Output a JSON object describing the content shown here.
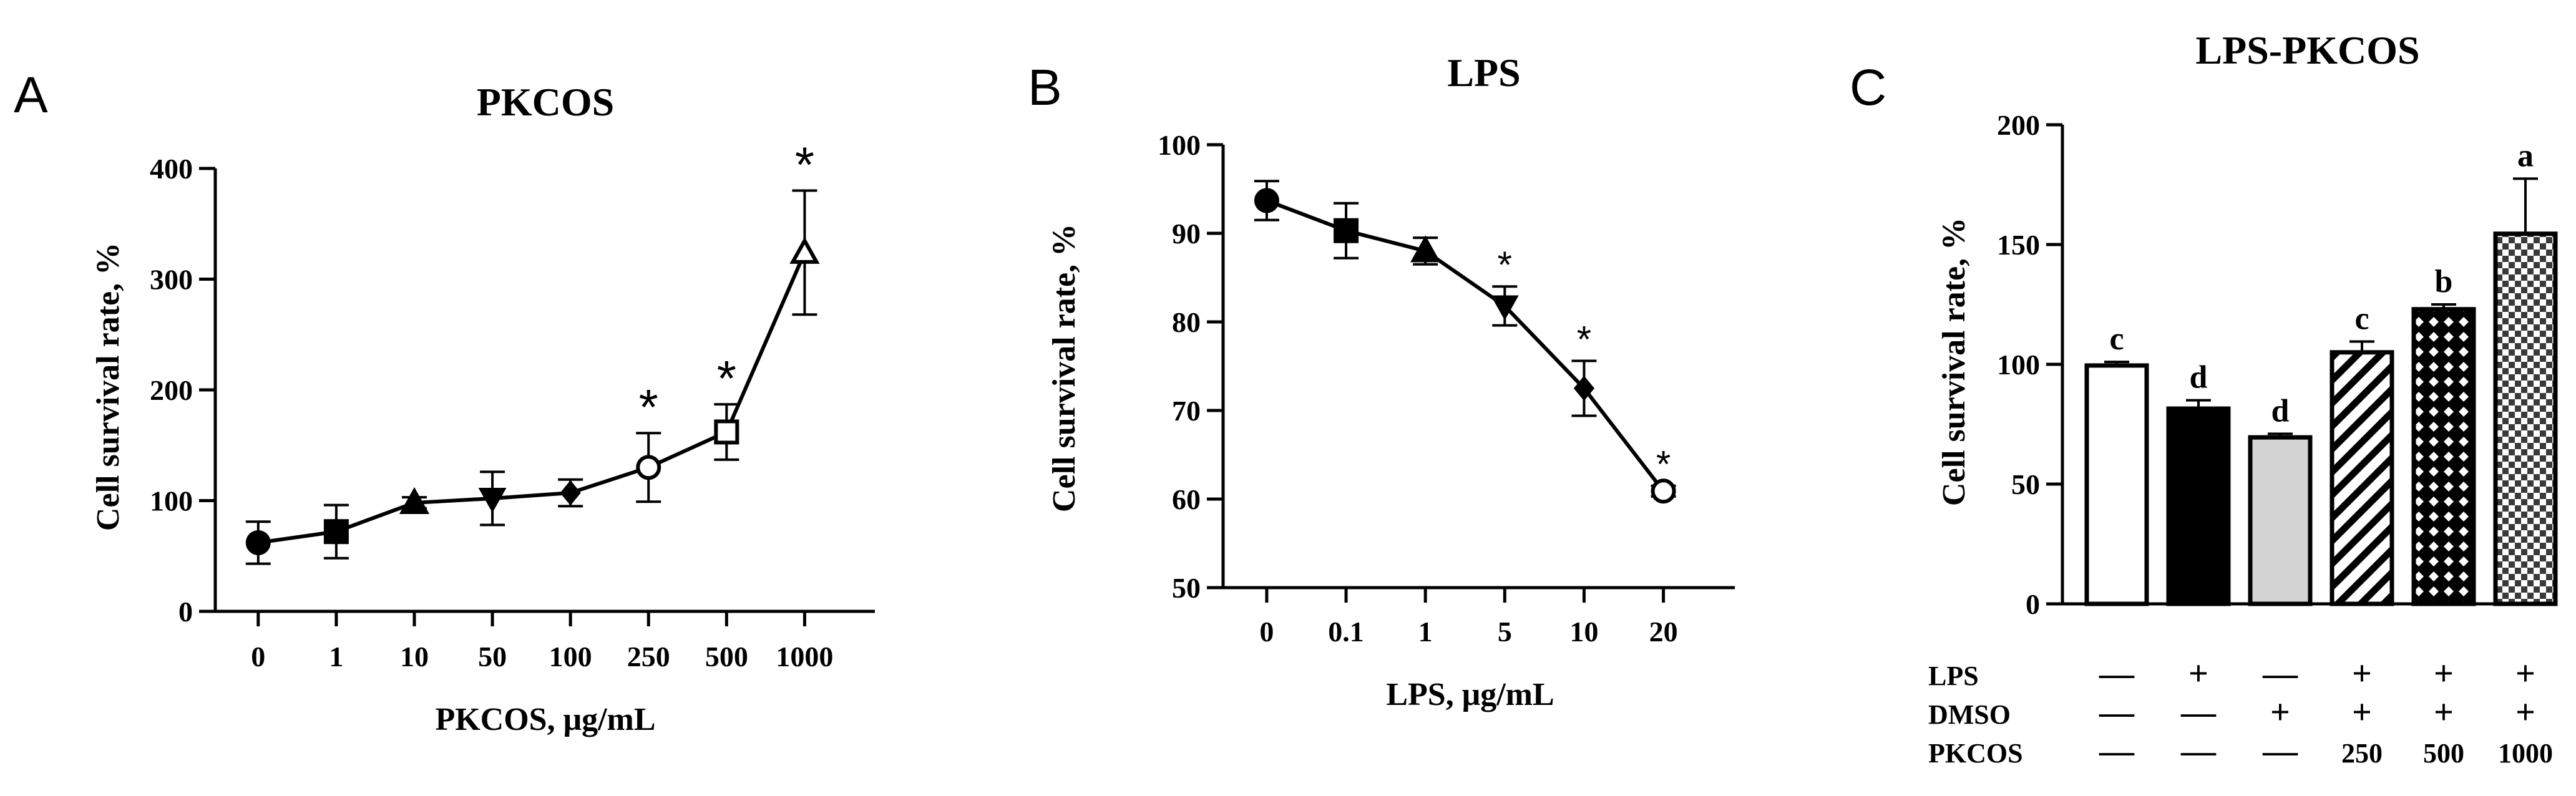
{
  "panel_letters": [
    "A",
    "B",
    "C"
  ],
  "chart_data": [
    {
      "type": "line",
      "panel": "A",
      "title": "PKCOS",
      "xlabel": "PKCOS, μg/mL",
      "ylabel": "Cell survival rate, %",
      "categories": [
        "0",
        "1",
        "10",
        "50",
        "100",
        "250",
        "500",
        "1000"
      ],
      "values": [
        62,
        72,
        98,
        102,
        107,
        130,
        162,
        324
      ],
      "errors": [
        19,
        24,
        5,
        24,
        12,
        31,
        25,
        56
      ],
      "markers": [
        "circle",
        "square",
        "triangle-up",
        "triangle-down",
        "diamond",
        "open-circle",
        "open-square",
        "open-triangle"
      ],
      "significance": [
        "",
        "",
        "",
        "",
        "",
        "*",
        "*",
        "*"
      ],
      "ylim": [
        0,
        400
      ],
      "yticks": [
        0,
        100,
        200,
        300,
        400
      ]
    },
    {
      "type": "line",
      "panel": "B",
      "title": "LPS",
      "xlabel": "LPS, μg/mL",
      "ylabel": "Cell survival rate, %",
      "categories": [
        "0",
        "0.1",
        "1",
        "5",
        "10",
        "20"
      ],
      "values": [
        93.7,
        90.3,
        88.0,
        81.8,
        72.5,
        60.9
      ],
      "errors": [
        2.2,
        3.1,
        1.5,
        2.2,
        3.1,
        0.6
      ],
      "markers": [
        "circle",
        "square",
        "triangle-up",
        "triangle-down",
        "diamond",
        "open-circle"
      ],
      "significance": [
        "",
        "",
        "",
        "*",
        "*",
        "*"
      ],
      "ylim": [
        50,
        100
      ],
      "yticks": [
        50,
        60,
        70,
        80,
        90,
        100
      ]
    },
    {
      "type": "bar",
      "panel": "C",
      "title": "LPS-PKCOS",
      "ylabel": "Cell survival rate, %",
      "values": [
        99.5,
        81.5,
        69.5,
        105.0,
        123.0,
        154.5
      ],
      "errors": [
        1.5,
        3.5,
        1.5,
        4.5,
        2.0,
        23.0
      ],
      "letters": [
        "c",
        "d",
        "d",
        "c",
        "b",
        "a"
      ],
      "fills": [
        "white",
        "black",
        "light-gray",
        "diagonal-hatch",
        "crosshatch",
        "checkerboard"
      ],
      "ylim": [
        0,
        200
      ],
      "yticks": [
        0,
        50,
        100,
        150,
        200
      ],
      "treatment_rows": [
        {
          "label": "LPS",
          "values": [
            "—",
            "+",
            "—",
            "+",
            "+",
            "+"
          ]
        },
        {
          "label": "DMSO",
          "values": [
            "—",
            "—",
            "+",
            "+",
            "+",
            "+"
          ]
        },
        {
          "label": "PKCOS",
          "values": [
            "—",
            "—",
            "—",
            "250",
            "500",
            "1000"
          ]
        }
      ]
    }
  ]
}
